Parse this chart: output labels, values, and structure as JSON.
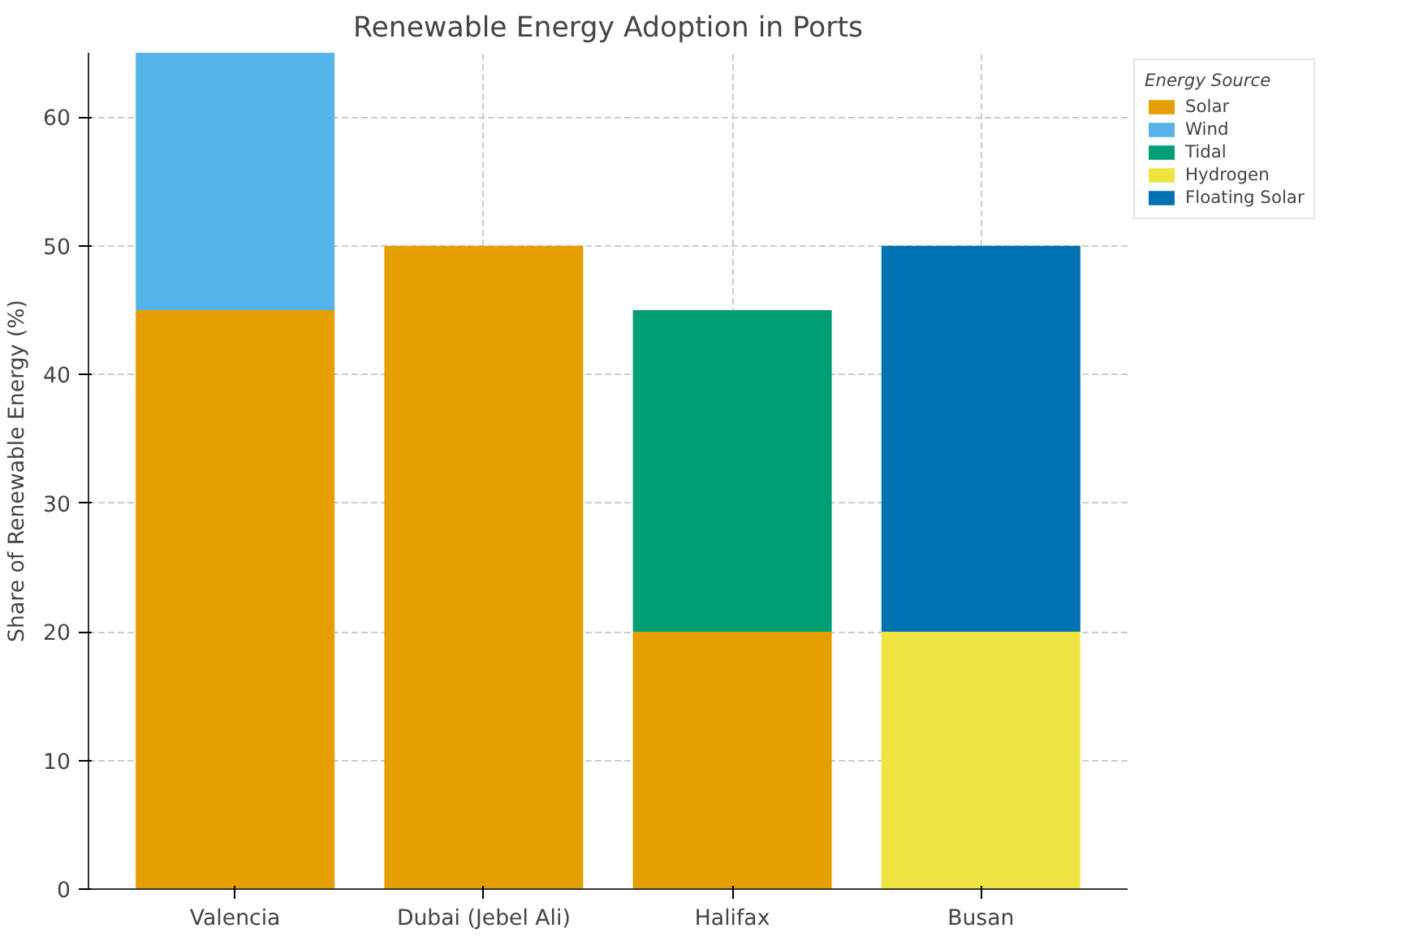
{
  "chart_data": {
    "type": "bar",
    "title": "Renewable Energy Adoption in Ports",
    "ylabel": "Share of Renewable Energy (%)",
    "legend_title": "Energy Source",
    "categories": [
      "Valencia",
      "Dubai (Jebel Ali)",
      "Halifax",
      "Busan"
    ],
    "series": [
      {
        "name": "Solar",
        "color": "#e69f00",
        "values": [
          45,
          50,
          20,
          null
        ]
      },
      {
        "name": "Wind",
        "color": "#56b4e9",
        "values": [
          20,
          null,
          null,
          null
        ]
      },
      {
        "name": "Tidal",
        "color": "#009e73",
        "values": [
          null,
          null,
          25,
          null
        ]
      },
      {
        "name": "Hydrogen",
        "color": "#f0e442",
        "values": [
          null,
          null,
          null,
          20
        ]
      },
      {
        "name": "Floating Solar",
        "color": "#0072b2",
        "values": [
          null,
          null,
          null,
          30
        ]
      }
    ],
    "stacked": true,
    "ylim": [
      0,
      65
    ],
    "yticks": [
      0,
      10,
      20,
      30,
      40,
      50,
      60
    ],
    "grid": true,
    "legend": "top right"
  }
}
